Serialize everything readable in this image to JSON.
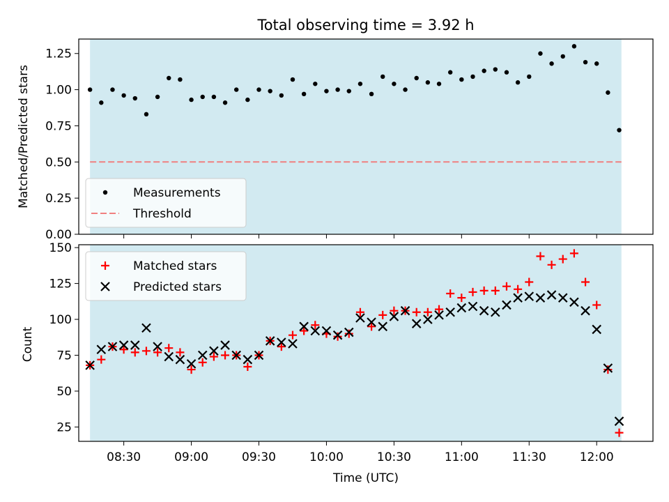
{
  "chart_data": [
    {
      "type": "scatter",
      "title": "Total observing time = 3.92 h",
      "ylabel": "Matched/Predicted stars",
      "xlabel": "",
      "xlim": [
        "08:10",
        "12:25"
      ],
      "ylim": [
        0,
        1.35
      ],
      "yticks": [
        "0.00",
        "0.25",
        "0.50",
        "0.75",
        "1.00",
        "1.25"
      ],
      "shaded_span": [
        "08:15",
        "12:11"
      ],
      "shade_color": "#add8e6",
      "legend_position": "lower-left",
      "series": [
        {
          "name": "Measurements",
          "marker": "dot",
          "color": "#000000",
          "x": [
            "08:15",
            "08:20",
            "08:25",
            "08:30",
            "08:35",
            "08:40",
            "08:45",
            "08:50",
            "08:55",
            "09:00",
            "09:05",
            "09:10",
            "09:15",
            "09:20",
            "09:25",
            "09:30",
            "09:35",
            "09:40",
            "09:45",
            "09:50",
            "09:55",
            "10:00",
            "10:05",
            "10:10",
            "10:15",
            "10:20",
            "10:25",
            "10:30",
            "10:35",
            "10:40",
            "10:45",
            "10:50",
            "10:55",
            "11:00",
            "11:05",
            "11:10",
            "11:15",
            "11:20",
            "11:25",
            "11:30",
            "11:35",
            "11:40",
            "11:45",
            "11:50",
            "11:55",
            "12:00",
            "12:05",
            "12:10"
          ],
          "y": [
            1.0,
            0.91,
            1.0,
            0.96,
            0.94,
            0.83,
            0.95,
            1.08,
            1.07,
            0.93,
            0.95,
            0.95,
            0.91,
            1.0,
            0.93,
            1.0,
            0.99,
            0.96,
            1.07,
            0.97,
            1.04,
            0.99,
            1.0,
            0.99,
            1.04,
            0.97,
            1.09,
            1.04,
            1.0,
            1.08,
            1.05,
            1.04,
            1.12,
            1.07,
            1.09,
            1.13,
            1.14,
            1.12,
            1.05,
            1.09,
            1.25,
            1.18,
            1.23,
            1.3,
            1.19,
            1.18,
            0.98,
            0.72
          ]
        },
        {
          "name": "Threshold",
          "marker": "dashed-line",
          "color": "#f08080",
          "x": [
            "08:15",
            "12:11"
          ],
          "y": [
            0.5,
            0.5
          ]
        }
      ]
    },
    {
      "type": "scatter",
      "title": "",
      "ylabel": "Count",
      "xlabel": "Time (UTC)",
      "xlim": [
        "08:10",
        "12:25"
      ],
      "ylim": [
        15,
        152
      ],
      "xticks": [
        "08:30",
        "09:00",
        "09:30",
        "10:00",
        "10:30",
        "11:00",
        "11:30",
        "12:00"
      ],
      "yticks": [
        "25",
        "50",
        "75",
        "100",
        "125",
        "150"
      ],
      "shaded_span": [
        "08:15",
        "12:11"
      ],
      "shade_color": "#add8e6",
      "legend_position": "upper-left",
      "series": [
        {
          "name": "Matched stars",
          "marker": "plus",
          "color": "#ff0000",
          "x": [
            "08:15",
            "08:20",
            "08:25",
            "08:30",
            "08:35",
            "08:40",
            "08:45",
            "08:50",
            "08:55",
            "09:00",
            "09:05",
            "09:10",
            "09:15",
            "09:20",
            "09:25",
            "09:30",
            "09:35",
            "09:40",
            "09:45",
            "09:50",
            "09:55",
            "10:00",
            "10:05",
            "10:10",
            "10:15",
            "10:20",
            "10:25",
            "10:30",
            "10:35",
            "10:40",
            "10:45",
            "10:50",
            "10:55",
            "11:00",
            "11:05",
            "11:10",
            "11:15",
            "11:20",
            "11:25",
            "11:30",
            "11:35",
            "11:40",
            "11:45",
            "11:50",
            "11:55",
            "12:00",
            "12:05",
            "12:10"
          ],
          "y": [
            68,
            72,
            81,
            79,
            77,
            78,
            77,
            80,
            77,
            65,
            70,
            74,
            75,
            75,
            67,
            75,
            85,
            81,
            89,
            92,
            96,
            90,
            88,
            90,
            105,
            95,
            103,
            106,
            106,
            105,
            105,
            107,
            118,
            115,
            119,
            120,
            120,
            123,
            121,
            126,
            144,
            138,
            142,
            146,
            126,
            110,
            65,
            21
          ]
        },
        {
          "name": "Predicted stars",
          "marker": "x",
          "color": "#000000",
          "x": [
            "08:15",
            "08:20",
            "08:25",
            "08:30",
            "08:35",
            "08:40",
            "08:45",
            "08:50",
            "08:55",
            "09:00",
            "09:05",
            "09:10",
            "09:15",
            "09:20",
            "09:25",
            "09:30",
            "09:35",
            "09:40",
            "09:45",
            "09:50",
            "09:55",
            "10:00",
            "10:05",
            "10:10",
            "10:15",
            "10:20",
            "10:25",
            "10:30",
            "10:35",
            "10:40",
            "10:45",
            "10:50",
            "10:55",
            "11:00",
            "11:05",
            "11:10",
            "11:15",
            "11:20",
            "11:25",
            "11:30",
            "11:35",
            "11:40",
            "11:45",
            "11:50",
            "11:55",
            "12:00",
            "12:05",
            "12:10"
          ],
          "y": [
            68,
            79,
            81,
            82,
            82,
            94,
            81,
            74,
            72,
            69,
            75,
            78,
            82,
            75,
            72,
            75,
            85,
            84,
            83,
            95,
            92,
            92,
            89,
            91,
            101,
            98,
            95,
            102,
            106,
            97,
            100,
            103,
            105,
            108,
            109,
            106,
            105,
            110,
            115,
            116,
            115,
            117,
            115,
            112,
            106,
            93,
            66,
            29
          ]
        }
      ]
    }
  ]
}
